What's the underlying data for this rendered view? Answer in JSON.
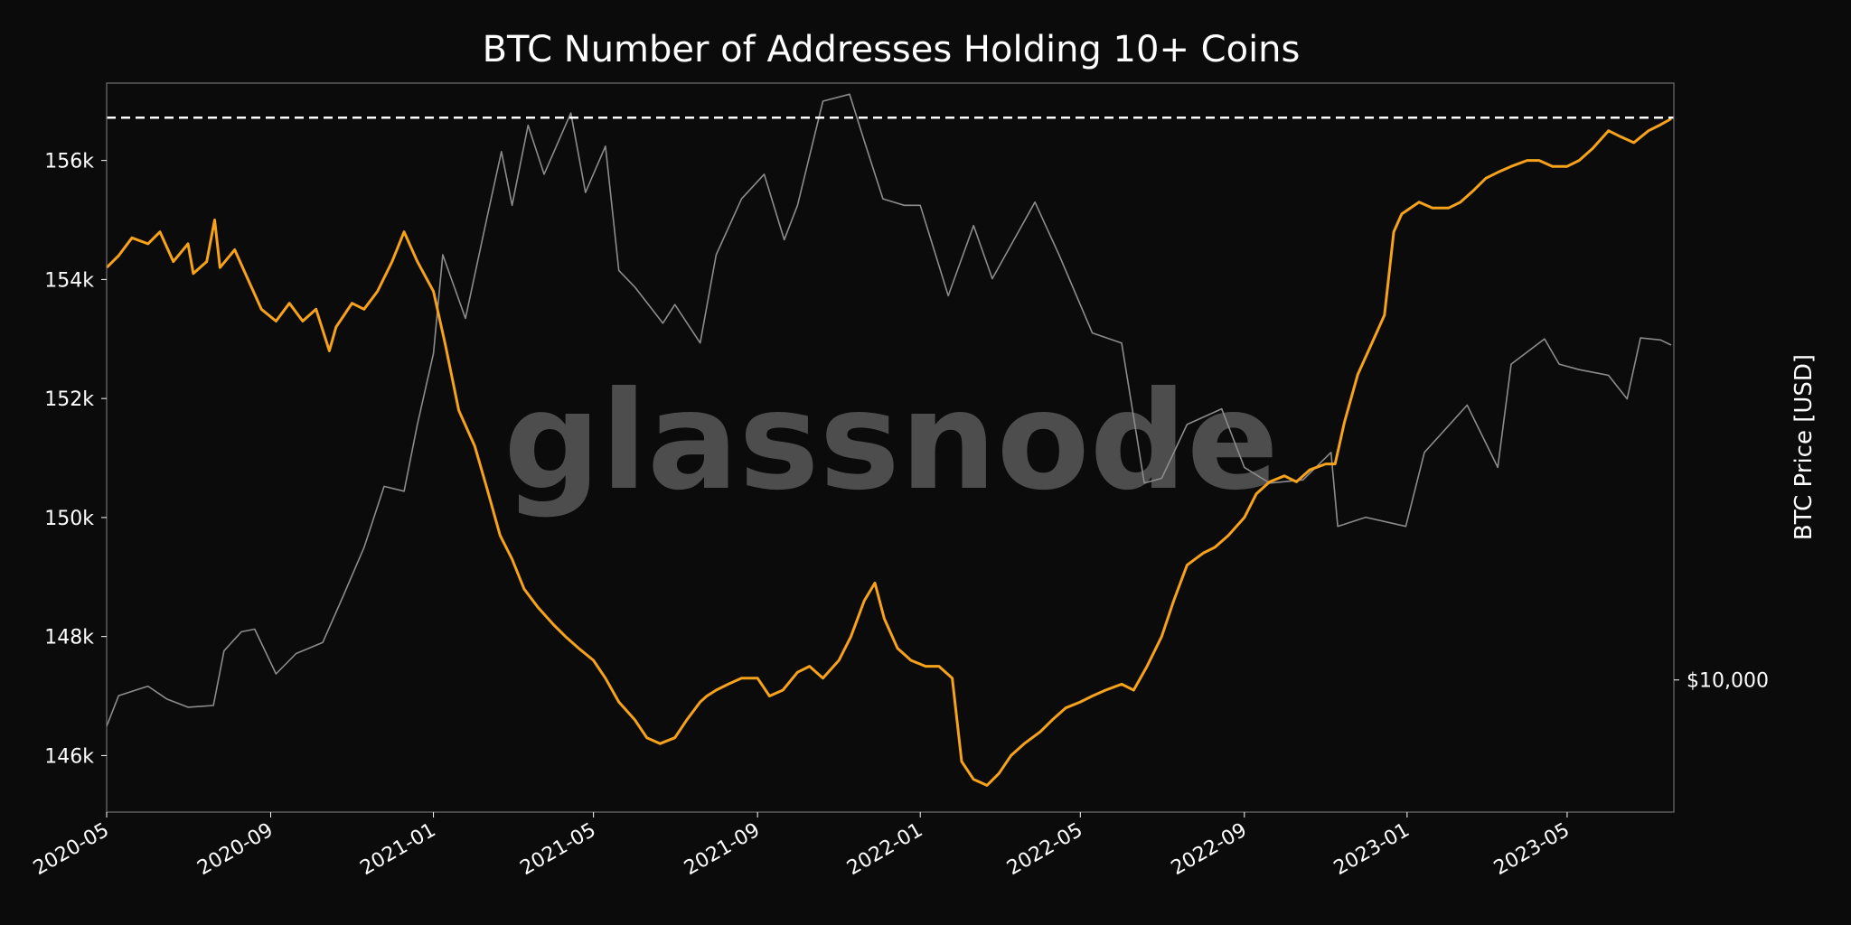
{
  "chart_data": {
    "type": "line",
    "title": "BTC Number of Addresses Holding 10+ Coins",
    "xlabel": "",
    "ylabel": "",
    "y2label": "BTC Price [USD]",
    "watermark": "glassnode",
    "x_ticks": [
      "2020-05",
      "2020-09",
      "2021-01",
      "2021-05",
      "2021-09",
      "2022-01",
      "2022-05",
      "2022-09",
      "2023-01",
      "2023-05"
    ],
    "y_ticks": [
      146000,
      148000,
      150000,
      152000,
      154000,
      156000
    ],
    "y_tick_labels": [
      "146k",
      "148k",
      "150k",
      "152k",
      "154k",
      "156k"
    ],
    "y2_ticks": [
      10000
    ],
    "y2_tick_labels": [
      "$10,000"
    ],
    "ylim": [
      145050,
      157300
    ],
    "xlim": [
      "2020-05-01",
      "2023-07-20"
    ],
    "y2lim_log": [
      6500,
      70000
    ],
    "ath_line": {
      "value": 156720,
      "style": "dashed",
      "color": "#ffffff"
    },
    "colors": {
      "background": "#0b0b0b",
      "addresses": "#f7a21b",
      "price": "#8c8c8c",
      "text": "#ffffff",
      "frame": "#707070",
      "watermark": "#555555"
    },
    "series": [
      {
        "name": "",
        "axis": "left",
        "points": [
          [
            "2020-05-01",
            154200
          ],
          [
            "2020-05-10",
            154400
          ],
          [
            "2020-05-20",
            154700
          ],
          [
            "2020-06-01",
            154600
          ],
          [
            "2020-06-10",
            154800
          ],
          [
            "2020-06-20",
            154300
          ],
          [
            "2020-07-01",
            154600
          ],
          [
            "2020-07-05",
            154100
          ],
          [
            "2020-07-15",
            154300
          ],
          [
            "2020-07-21",
            155000
          ],
          [
            "2020-07-25",
            154200
          ],
          [
            "2020-08-05",
            154500
          ],
          [
            "2020-08-15",
            154000
          ],
          [
            "2020-08-25",
            153500
          ],
          [
            "2020-09-05",
            153300
          ],
          [
            "2020-09-15",
            153600
          ],
          [
            "2020-09-25",
            153300
          ],
          [
            "2020-10-05",
            153500
          ],
          [
            "2020-10-15",
            152800
          ],
          [
            "2020-10-20",
            153200
          ],
          [
            "2020-11-01",
            153600
          ],
          [
            "2020-11-10",
            153500
          ],
          [
            "2020-11-20",
            153800
          ],
          [
            "2020-12-01",
            154300
          ],
          [
            "2020-12-10",
            154800
          ],
          [
            "2020-12-20",
            154300
          ],
          [
            "2021-01-01",
            153800
          ],
          [
            "2021-01-10",
            152900
          ],
          [
            "2021-01-20",
            151800
          ],
          [
            "2021-02-01",
            151200
          ],
          [
            "2021-02-10",
            150500
          ],
          [
            "2021-02-20",
            149700
          ],
          [
            "2021-03-01",
            149300
          ],
          [
            "2021-03-10",
            148800
          ],
          [
            "2021-03-20",
            148500
          ],
          [
            "2021-04-01",
            148200
          ],
          [
            "2021-04-10",
            148000
          ],
          [
            "2021-04-20",
            147800
          ],
          [
            "2021-05-01",
            147600
          ],
          [
            "2021-05-10",
            147300
          ],
          [
            "2021-05-20",
            146900
          ],
          [
            "2021-06-01",
            146600
          ],
          [
            "2021-06-10",
            146300
          ],
          [
            "2021-06-20",
            146200
          ],
          [
            "2021-07-01",
            146300
          ],
          [
            "2021-07-10",
            146600
          ],
          [
            "2021-07-20",
            146900
          ],
          [
            "2021-07-25",
            147000
          ],
          [
            "2021-08-01",
            147100
          ],
          [
            "2021-08-10",
            147200
          ],
          [
            "2021-08-20",
            147300
          ],
          [
            "2021-09-01",
            147300
          ],
          [
            "2021-09-10",
            147000
          ],
          [
            "2021-09-20",
            147100
          ],
          [
            "2021-10-01",
            147400
          ],
          [
            "2021-10-10",
            147500
          ],
          [
            "2021-10-20",
            147300
          ],
          [
            "2021-11-01",
            147600
          ],
          [
            "2021-11-10",
            148000
          ],
          [
            "2021-11-20",
            148600
          ],
          [
            "2021-11-28",
            148900
          ],
          [
            "2021-12-05",
            148300
          ],
          [
            "2021-12-15",
            147800
          ],
          [
            "2021-12-25",
            147600
          ],
          [
            "2022-01-05",
            147500
          ],
          [
            "2022-01-15",
            147500
          ],
          [
            "2022-01-25",
            147300
          ],
          [
            "2022-02-01",
            145900
          ],
          [
            "2022-02-10",
            145600
          ],
          [
            "2022-02-20",
            145500
          ],
          [
            "2022-03-01",
            145700
          ],
          [
            "2022-03-10",
            146000
          ],
          [
            "2022-03-20",
            146200
          ],
          [
            "2022-04-01",
            146400
          ],
          [
            "2022-04-10",
            146600
          ],
          [
            "2022-04-20",
            146800
          ],
          [
            "2022-05-01",
            146900
          ],
          [
            "2022-05-10",
            147000
          ],
          [
            "2022-05-20",
            147100
          ],
          [
            "2022-06-01",
            147200
          ],
          [
            "2022-06-10",
            147100
          ],
          [
            "2022-06-20",
            147500
          ],
          [
            "2022-07-01",
            148000
          ],
          [
            "2022-07-10",
            148600
          ],
          [
            "2022-07-20",
            149200
          ],
          [
            "2022-08-01",
            149400
          ],
          [
            "2022-08-10",
            149500
          ],
          [
            "2022-08-20",
            149700
          ],
          [
            "2022-09-01",
            150000
          ],
          [
            "2022-09-10",
            150400
          ],
          [
            "2022-09-20",
            150600
          ],
          [
            "2022-10-01",
            150700
          ],
          [
            "2022-10-10",
            150600
          ],
          [
            "2022-10-20",
            150800
          ],
          [
            "2022-11-01",
            150900
          ],
          [
            "2022-11-08",
            150900
          ],
          [
            "2022-11-15",
            151600
          ],
          [
            "2022-11-25",
            152400
          ],
          [
            "2022-12-05",
            152900
          ],
          [
            "2022-12-15",
            153400
          ],
          [
            "2022-12-22",
            154800
          ],
          [
            "2022-12-28",
            155100
          ],
          [
            "2023-01-10",
            155300
          ],
          [
            "2023-01-20",
            155200
          ],
          [
            "2023-02-01",
            155200
          ],
          [
            "2023-02-10",
            155300
          ],
          [
            "2023-02-20",
            155500
          ],
          [
            "2023-03-01",
            155700
          ],
          [
            "2023-03-10",
            155800
          ],
          [
            "2023-03-20",
            155900
          ],
          [
            "2023-04-01",
            156000
          ],
          [
            "2023-04-10",
            156000
          ],
          [
            "2023-04-20",
            155900
          ],
          [
            "2023-05-01",
            155900
          ],
          [
            "2023-05-10",
            156000
          ],
          [
            "2023-05-20",
            156200
          ],
          [
            "2023-06-01",
            156500
          ],
          [
            "2023-06-10",
            156400
          ],
          [
            "2023-06-20",
            156300
          ],
          [
            "2023-07-01",
            156500
          ],
          [
            "2023-07-10",
            156600
          ],
          [
            "2023-07-18",
            156700
          ]
        ]
      },
      {
        "name": "BTC Price [USD]",
        "axis": "right",
        "points": [
          [
            "2020-05-01",
            8600
          ],
          [
            "2020-05-10",
            9500
          ],
          [
            "2020-06-01",
            9800
          ],
          [
            "2020-06-15",
            9400
          ],
          [
            "2020-07-01",
            9150
          ],
          [
            "2020-07-20",
            9200
          ],
          [
            "2020-07-28",
            11000
          ],
          [
            "2020-08-10",
            11700
          ],
          [
            "2020-08-20",
            11800
          ],
          [
            "2020-09-05",
            10200
          ],
          [
            "2020-09-20",
            10900
          ],
          [
            "2020-10-10",
            11300
          ],
          [
            "2020-10-25",
            13100
          ],
          [
            "2020-11-10",
            15400
          ],
          [
            "2020-11-25",
            18800
          ],
          [
            "2020-12-10",
            18500
          ],
          [
            "2020-12-20",
            23000
          ],
          [
            "2021-01-01",
            29000
          ],
          [
            "2021-01-08",
            40000
          ],
          [
            "2021-01-25",
            32500
          ],
          [
            "2021-02-10",
            45000
          ],
          [
            "2021-02-21",
            56000
          ],
          [
            "2021-03-01",
            47000
          ],
          [
            "2021-03-13",
            61000
          ],
          [
            "2021-03-25",
            52000
          ],
          [
            "2021-04-14",
            63500
          ],
          [
            "2021-04-25",
            49000
          ],
          [
            "2021-05-10",
            57000
          ],
          [
            "2021-05-20",
            38000
          ],
          [
            "2021-06-01",
            36000
          ],
          [
            "2021-06-22",
            32000
          ],
          [
            "2021-07-01",
            34000
          ],
          [
            "2021-07-20",
            30000
          ],
          [
            "2021-08-01",
            40000
          ],
          [
            "2021-08-20",
            48000
          ],
          [
            "2021-09-06",
            52000
          ],
          [
            "2021-09-21",
            42000
          ],
          [
            "2021-10-01",
            47000
          ],
          [
            "2021-10-20",
            66000
          ],
          [
            "2021-11-09",
            67500
          ],
          [
            "2021-11-20",
            58000
          ],
          [
            "2021-12-04",
            48000
          ],
          [
            "2021-12-20",
            47000
          ],
          [
            "2022-01-01",
            47000
          ],
          [
            "2022-01-22",
            35000
          ],
          [
            "2022-02-10",
            44000
          ],
          [
            "2022-02-24",
            37000
          ],
          [
            "2022-03-28",
            47500
          ],
          [
            "2022-04-15",
            40000
          ],
          [
            "2022-05-10",
            31000
          ],
          [
            "2022-06-01",
            30000
          ],
          [
            "2022-06-18",
            19000
          ],
          [
            "2022-07-01",
            19300
          ],
          [
            "2022-07-20",
            23000
          ],
          [
            "2022-08-15",
            24200
          ],
          [
            "2022-09-01",
            20000
          ],
          [
            "2022-09-20",
            19000
          ],
          [
            "2022-10-15",
            19200
          ],
          [
            "2022-11-05",
            21000
          ],
          [
            "2022-11-10",
            16500
          ],
          [
            "2022-12-01",
            17000
          ],
          [
            "2022-12-31",
            16500
          ],
          [
            "2023-01-14",
            21000
          ],
          [
            "2023-02-15",
            24500
          ],
          [
            "2023-03-10",
            20000
          ],
          [
            "2023-03-20",
            28000
          ],
          [
            "2023-04-14",
            30400
          ],
          [
            "2023-04-25",
            28000
          ],
          [
            "2023-05-10",
            27500
          ],
          [
            "2023-06-01",
            27000
          ],
          [
            "2023-06-15",
            25000
          ],
          [
            "2023-06-25",
            30500
          ],
          [
            "2023-07-10",
            30300
          ],
          [
            "2023-07-18",
            29800
          ]
        ]
      }
    ]
  }
}
